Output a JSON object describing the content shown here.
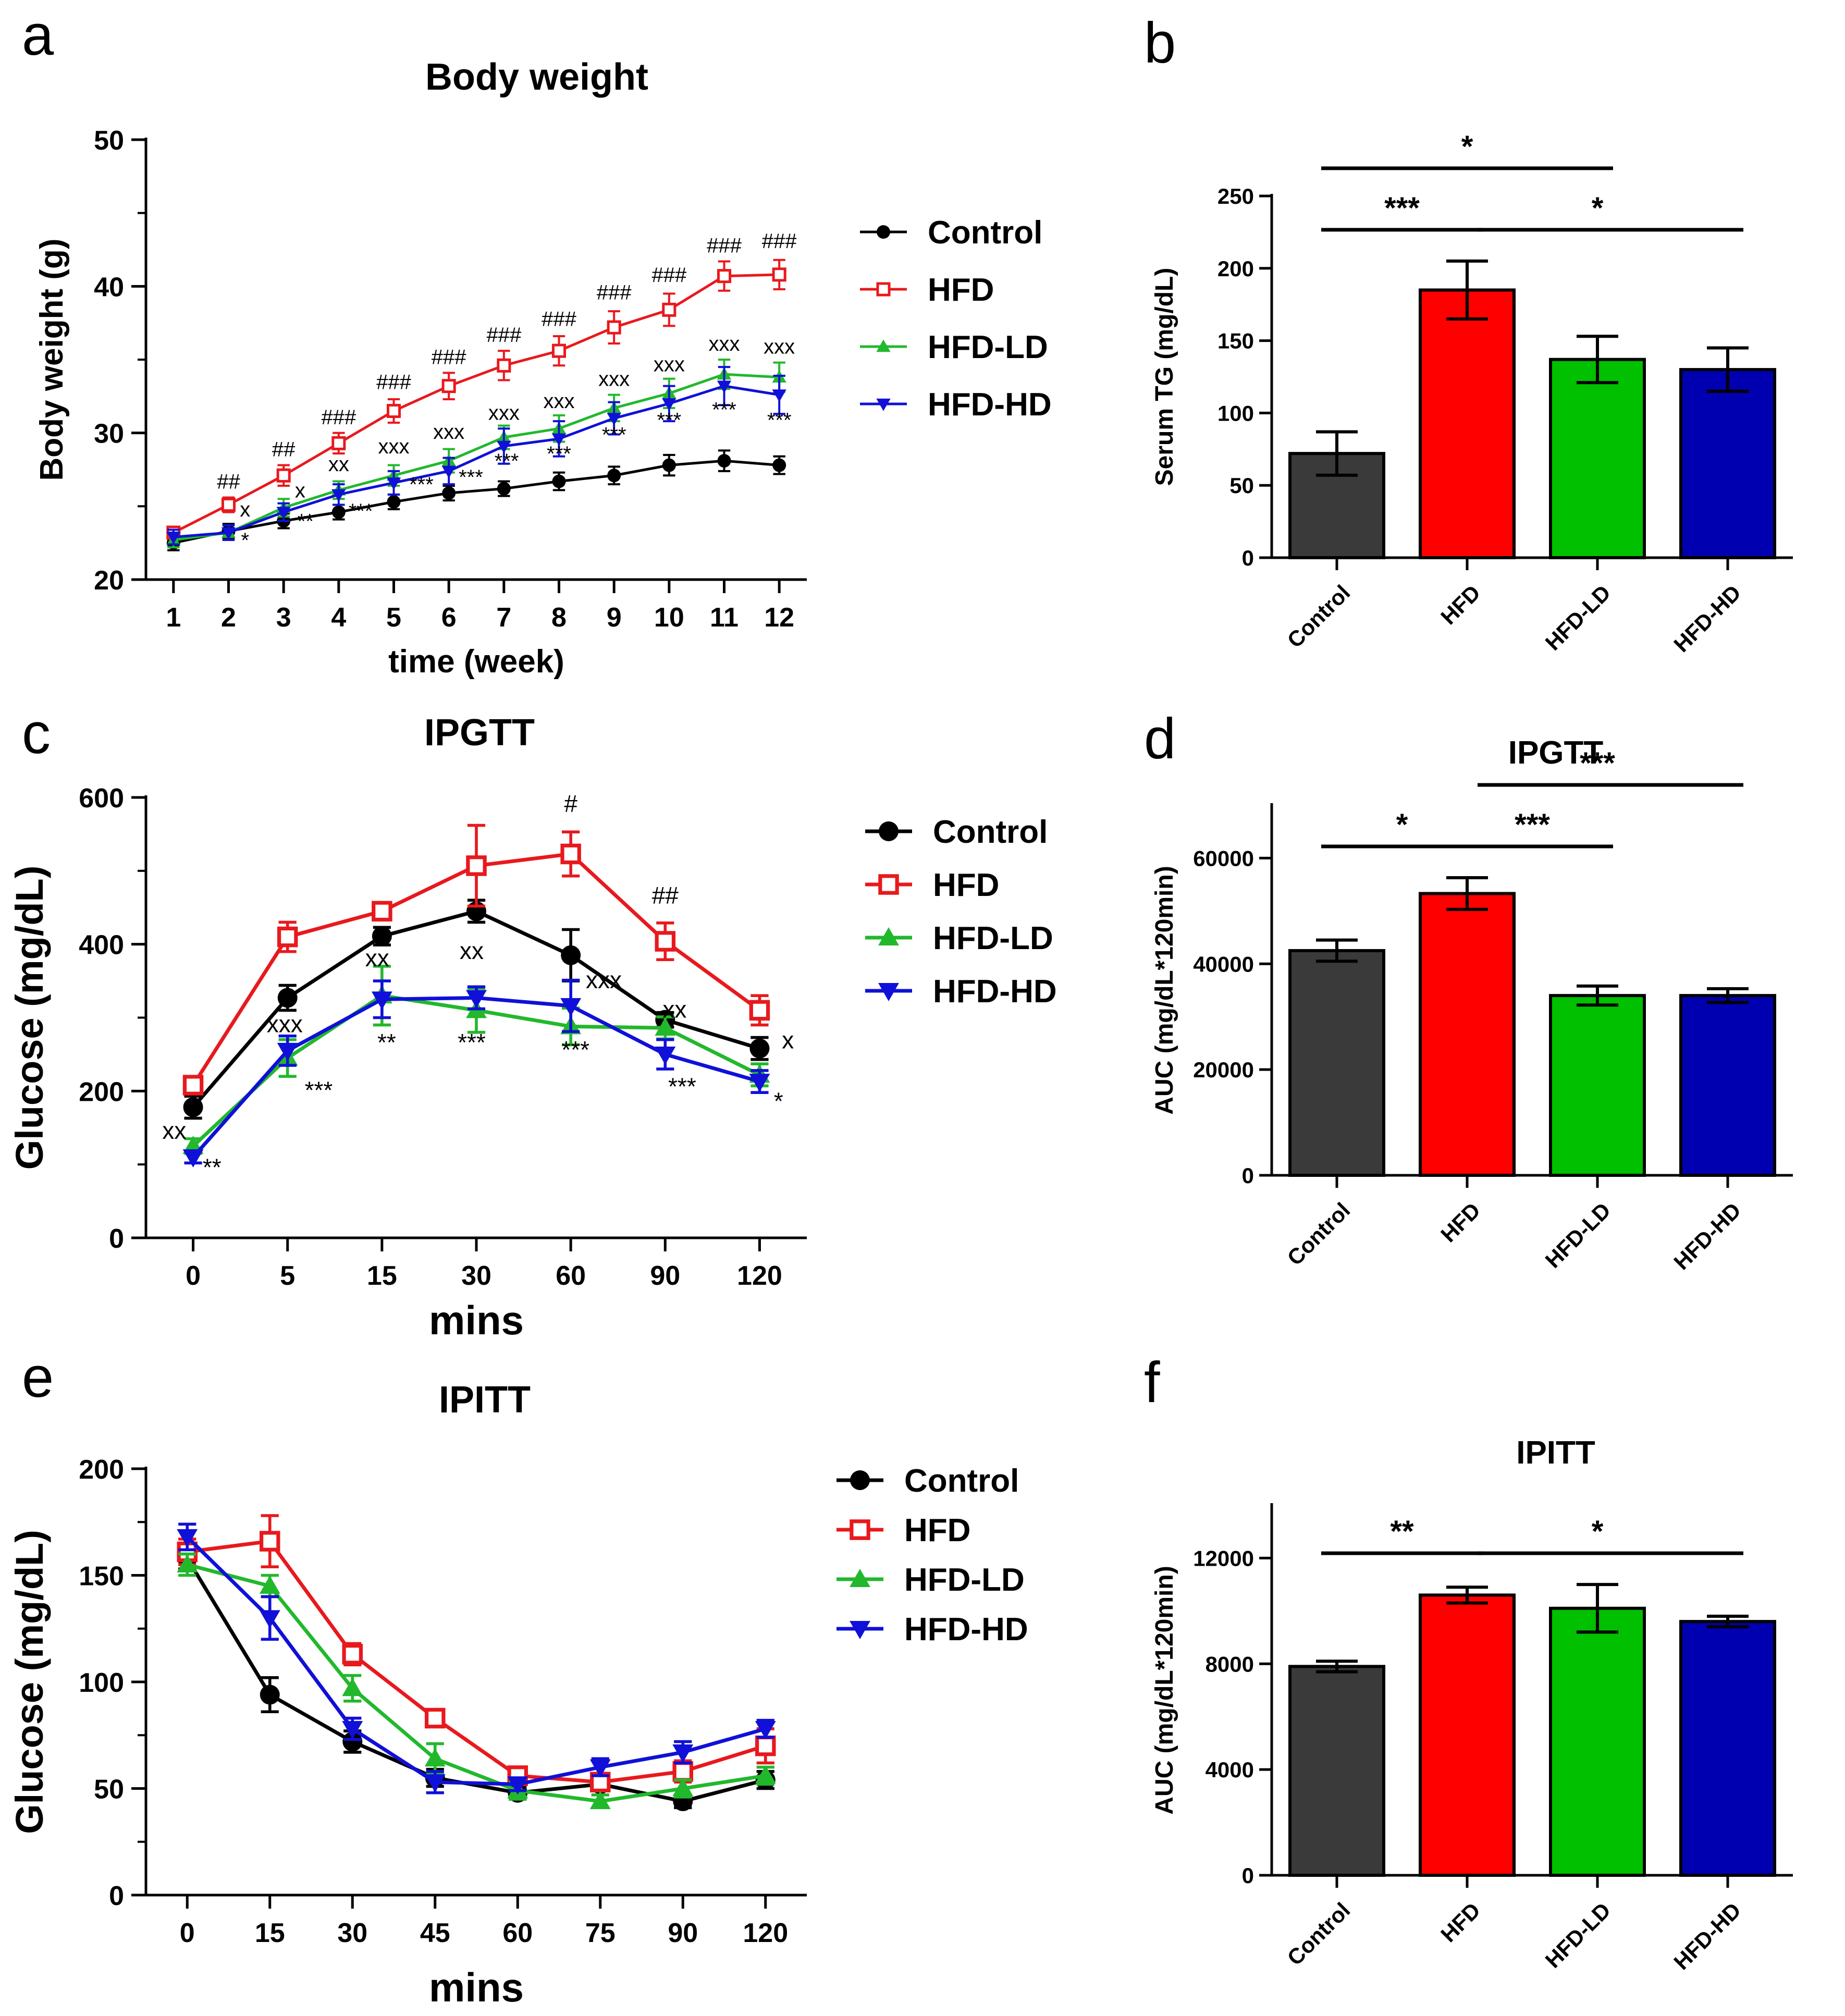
{
  "chart_data": [
    {
      "id": "a",
      "type": "line",
      "panel": "a",
      "title": "Body weight",
      "xlabel": "time (week)",
      "ylabel": "Body weight (g)",
      "x": [
        1,
        2,
        3,
        4,
        5,
        6,
        7,
        8,
        9,
        10,
        11,
        12
      ],
      "ylim": [
        20,
        50
      ],
      "yticks": [
        20,
        30,
        40,
        50
      ],
      "grid": false,
      "legend": "right",
      "series": [
        {
          "name": "Control",
          "color": "#000000",
          "marker": "dot",
          "values": [
            22.5,
            23.3,
            24.0,
            24.6,
            25.3,
            25.9,
            26.2,
            26.7,
            27.1,
            27.8,
            28.1,
            27.8
          ],
          "errors": [
            0.5,
            0.5,
            0.5,
            0.5,
            0.5,
            0.5,
            0.5,
            0.6,
            0.6,
            0.7,
            0.7,
            0.6
          ]
        },
        {
          "name": "HFD",
          "color": "#e8191d",
          "marker": "square-open",
          "values": [
            23.2,
            25.1,
            27.1,
            29.3,
            31.5,
            33.2,
            34.6,
            35.6,
            37.2,
            38.4,
            40.7,
            40.8
          ],
          "errors": [
            0.4,
            0.5,
            0.7,
            0.7,
            0.8,
            0.9,
            1.0,
            1.0,
            1.1,
            1.1,
            1.0,
            1.0
          ]
        },
        {
          "name": "HFD-LD",
          "color": "#22b82c",
          "marker": "triangle-up",
          "values": [
            22.7,
            23.2,
            24.9,
            26.1,
            27.1,
            28.1,
            29.7,
            30.3,
            31.7,
            32.7,
            34.0,
            33.8
          ],
          "errors": [
            0.5,
            0.5,
            0.6,
            0.6,
            0.7,
            0.8,
            0.8,
            0.9,
            0.9,
            1.0,
            1.0,
            1.0
          ]
        },
        {
          "name": "HFD-HD",
          "color": "#1010d8",
          "marker": "triangle-down",
          "values": [
            22.9,
            23.2,
            24.6,
            25.8,
            26.6,
            27.4,
            29.1,
            29.6,
            31.0,
            32.0,
            33.2,
            32.6
          ],
          "errors": [
            0.5,
            0.5,
            0.6,
            0.7,
            0.8,
            0.9,
            1.2,
            1.2,
            1.1,
            1.2,
            1.3,
            1.3
          ]
        }
      ],
      "annotations": [
        {
          "text": "##",
          "x": 2,
          "y": 26.2
        },
        {
          "text": "##",
          "x": 3,
          "y": 28.4
        },
        {
          "text": "###",
          "x": 4,
          "y": 30.6
        },
        {
          "text": "###",
          "x": 5,
          "y": 33.0
        },
        {
          "text": "###",
          "x": 6,
          "y": 34.7
        },
        {
          "text": "###",
          "x": 7,
          "y": 36.2
        },
        {
          "text": "###",
          "x": 8,
          "y": 37.3
        },
        {
          "text": "###",
          "x": 9,
          "y": 39.1
        },
        {
          "text": "###",
          "x": 10,
          "y": 40.3
        },
        {
          "text": "###",
          "x": 11,
          "y": 42.3
        },
        {
          "text": "###",
          "x": 12,
          "y": 42.6
        },
        {
          "text": "x",
          "x": 2.3,
          "y": 24.3
        },
        {
          "text": "x",
          "x": 3.3,
          "y": 25.6
        },
        {
          "text": "xx",
          "x": 4,
          "y": 27.4
        },
        {
          "text": "xxx",
          "x": 5,
          "y": 28.6
        },
        {
          "text": "xxx",
          "x": 6,
          "y": 29.6
        },
        {
          "text": "xxx",
          "x": 7,
          "y": 30.9
        },
        {
          "text": "xxx",
          "x": 8,
          "y": 31.7
        },
        {
          "text": "xxx",
          "x": 9,
          "y": 33.2
        },
        {
          "text": "xxx",
          "x": 10,
          "y": 34.2
        },
        {
          "text": "xxx",
          "x": 11,
          "y": 35.6
        },
        {
          "text": "xxx",
          "x": 12,
          "y": 35.4
        },
        {
          "text": "*",
          "x": 2.3,
          "y": 22.2
        },
        {
          "text": "**",
          "x": 3.4,
          "y": 23.5
        },
        {
          "text": "***",
          "x": 4.4,
          "y": 24.2
        },
        {
          "text": "***",
          "x": 5.5,
          "y": 26.0
        },
        {
          "text": "***",
          "x": 6.4,
          "y": 26.5
        },
        {
          "text": "***",
          "x": 7.05,
          "y": 27.6
        },
        {
          "text": "***",
          "x": 8.0,
          "y": 28.1
        },
        {
          "text": "***",
          "x": 9.0,
          "y": 29.4
        },
        {
          "text": "***",
          "x": 10.0,
          "y": 30.4
        },
        {
          "text": "***",
          "x": 11.0,
          "y": 31.1
        },
        {
          "text": "***",
          "x": 12.0,
          "y": 30.4
        }
      ]
    },
    {
      "id": "b",
      "type": "bar",
      "panel": "b",
      "title": "",
      "xlabel": "",
      "ylabel": "Serum TG (mg/dL)",
      "categories": [
        "Control",
        "HFD",
        "HFD-LD",
        "HFD-HD"
      ],
      "values": [
        72,
        185,
        137,
        130
      ],
      "errors": [
        15,
        20,
        16,
        15
      ],
      "colors": [
        "#3a3a3a",
        "#ff0000",
        "#00c000",
        "#0000b0"
      ],
      "ylim": [
        0,
        250
      ],
      "yticks": [
        0,
        50,
        100,
        150,
        200,
        250
      ],
      "significance": [
        {
          "from": 0,
          "to": 1,
          "label": "***",
          "level": 0
        },
        {
          "from": 1,
          "to": 3,
          "label": "*",
          "level": 0
        },
        {
          "from": 0,
          "to": 2,
          "label": "*",
          "level": 1
        }
      ]
    },
    {
      "id": "c",
      "type": "line",
      "panel": "c",
      "title": "IPGTT",
      "xlabel": "mins",
      "ylabel": "Glucose (mg/dL)",
      "x": [
        "0",
        "5",
        "15",
        "30",
        "60",
        "90",
        "120"
      ],
      "ylim": [
        0,
        600
      ],
      "yticks": [
        0,
        200,
        400,
        600
      ],
      "grid": false,
      "legend": "right",
      "series": [
        {
          "name": "Control",
          "color": "#000000",
          "marker": "dot",
          "values": [
            178,
            327,
            411,
            445,
            385,
            297,
            258
          ],
          "errors": [
            15,
            17,
            12,
            15,
            35,
            10,
            15
          ]
        },
        {
          "name": "HFD",
          "color": "#e8191d",
          "marker": "square-open",
          "values": [
            208,
            410,
            445,
            507,
            523,
            404,
            310
          ],
          "errors": [
            10,
            20,
            10,
            55,
            30,
            25,
            20
          ]
        },
        {
          "name": "HFD-LD",
          "color": "#22b82c",
          "marker": "triangle-up",
          "values": [
            125,
            245,
            330,
            310,
            288,
            286,
            222
          ],
          "errors": [
            10,
            25,
            40,
            30,
            25,
            15,
            15
          ]
        },
        {
          "name": "HFD-HD",
          "color": "#1010d8",
          "marker": "triangle-down",
          "values": [
            110,
            255,
            325,
            327,
            316,
            250,
            213
          ],
          "errors": [
            8,
            20,
            25,
            15,
            35,
            20,
            15
          ]
        }
      ],
      "annotations": [
        {
          "text": "#",
          "xi": 4,
          "y": 580
        },
        {
          "text": "##",
          "xi": 5,
          "y": 455
        },
        {
          "text": "xx",
          "xi": -0.2,
          "y": 135
        },
        {
          "text": "xxx",
          "xi": 0.97,
          "y": 280
        },
        {
          "text": "xx",
          "xi": 1.95,
          "y": 370
        },
        {
          "text": "xx",
          "xi": 2.95,
          "y": 380
        },
        {
          "text": "xxx",
          "xi": 4.35,
          "y": 340
        },
        {
          "text": "xx",
          "xi": 5.1,
          "y": 300
        },
        {
          "text": "x",
          "xi": 6.3,
          "y": 258
        },
        {
          "text": "**",
          "xi": 0.2,
          "y": 85
        },
        {
          "text": "***",
          "xi": 1.33,
          "y": 190
        },
        {
          "text": "**",
          "xi": 2.05,
          "y": 255
        },
        {
          "text": "***",
          "xi": 2.95,
          "y": 255
        },
        {
          "text": "***",
          "xi": 4.05,
          "y": 245
        },
        {
          "text": "***",
          "xi": 5.18,
          "y": 195
        },
        {
          "text": "*",
          "xi": 6.2,
          "y": 175
        }
      ]
    },
    {
      "id": "d",
      "type": "bar",
      "panel": "d",
      "title": "IPGTT",
      "xlabel": "",
      "ylabel": "AUC (mg/dL*120min)",
      "categories": [
        "Control",
        "HFD",
        "HFD-LD",
        "HFD-HD"
      ],
      "values": [
        42500,
        53300,
        34000,
        34000
      ],
      "errors": [
        2000,
        3000,
        1800,
        1300
      ],
      "colors": [
        "#3a3a3a",
        "#ff0000",
        "#00c000",
        "#0000b0"
      ],
      "ylim": [
        0,
        70000
      ],
      "yticks": [
        0,
        20000,
        40000,
        60000
      ],
      "significance": [
        {
          "from": 0,
          "to": 1,
          "label": "*",
          "level": 0
        },
        {
          "from": 1,
          "to": 2,
          "label": "***",
          "level": 0
        },
        {
          "from": 1,
          "to": 3,
          "label": "***",
          "level": 1
        }
      ]
    },
    {
      "id": "e",
      "type": "line",
      "panel": "e",
      "title": "IPITT",
      "xlabel": "mins",
      "ylabel": "Glucose (mg/dL)",
      "x": [
        "0",
        "15",
        "30",
        "45",
        "60",
        "75",
        "90",
        "120"
      ],
      "ylim": [
        0,
        200
      ],
      "yticks": [
        0,
        50,
        100,
        150,
        200
      ],
      "grid": false,
      "legend": "right",
      "series": [
        {
          "name": "Control",
          "color": "#000000",
          "marker": "dot",
          "values": [
            158,
            94,
            72,
            55,
            48,
            52,
            44,
            54
          ],
          "errors": [
            5,
            8,
            5,
            4,
            3,
            3,
            3,
            4
          ]
        },
        {
          "name": "HFD",
          "color": "#e8191d",
          "marker": "square-open",
          "values": [
            161,
            166,
            113,
            83,
            56,
            53,
            58,
            70
          ],
          "errors": [
            6,
            12,
            5,
            4,
            4,
            3,
            5,
            8
          ]
        },
        {
          "name": "HFD-LD",
          "color": "#22b82c",
          "marker": "triangle-up",
          "values": [
            155,
            145,
            97,
            64,
            49,
            44,
            50,
            56
          ],
          "errors": [
            5,
            5,
            6,
            7,
            4,
            3,
            4,
            4
          ]
        },
        {
          "name": "HFD-HD",
          "color": "#1010d8",
          "marker": "triangle-down",
          "values": [
            168,
            130,
            78,
            53,
            52,
            60,
            67,
            78
          ],
          "errors": [
            6,
            10,
            5,
            5,
            3,
            4,
            5,
            4
          ]
        }
      ],
      "annotations": []
    },
    {
      "id": "f",
      "type": "bar",
      "panel": "f",
      "title": "IPITT",
      "xlabel": "",
      "ylabel": "AUC (mg/dL*120min)",
      "categories": [
        "Control",
        "HFD",
        "HFD-LD",
        "HFD-HD"
      ],
      "values": [
        7900,
        10600,
        10100,
        9600
      ],
      "errors": [
        200,
        300,
        900,
        200
      ],
      "colors": [
        "#3a3a3a",
        "#ff0000",
        "#00c000",
        "#0000b0"
      ],
      "ylim": [
        0,
        14000
      ],
      "yticks": [
        0,
        4000,
        8000,
        12000
      ],
      "significance": [
        {
          "from": 0,
          "to": 1,
          "label": "**",
          "level": 0
        },
        {
          "from": 1,
          "to": 3,
          "label": "*",
          "level": 0
        }
      ]
    }
  ]
}
